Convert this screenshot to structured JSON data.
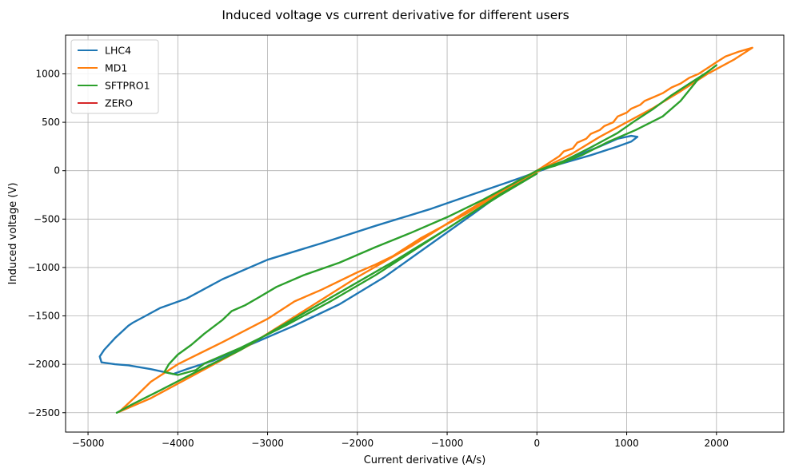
{
  "chart_data": {
    "type": "line",
    "title": "Induced voltage vs current derivative for different users",
    "xlabel": "Current derivative (A/s)",
    "ylabel": "Induced voltage (V)",
    "xlim": [
      -5250,
      2750
    ],
    "ylim": [
      -2700,
      1400
    ],
    "xticks": [
      -5000,
      -4000,
      -3000,
      -2000,
      -1000,
      0,
      1000,
      2000
    ],
    "xtick_labels": [
      "−5000",
      "−4000",
      "−3000",
      "−2000",
      "−1000",
      "0",
      "1000",
      "2000"
    ],
    "yticks": [
      -2500,
      -2000,
      -1500,
      -1000,
      -500,
      0,
      500,
      1000
    ],
    "ytick_labels": [
      "−2500",
      "−2000",
      "−1500",
      "−1000",
      "−500",
      "0",
      "500",
      "1000"
    ],
    "grid": true,
    "legend_position": "top-left",
    "series": [
      {
        "name": "LHC4",
        "color": "#1f77b4",
        "points": [
          [
            0,
            0
          ],
          [
            300,
            80
          ],
          [
            600,
            160
          ],
          [
            900,
            250
          ],
          [
            1050,
            300
          ],
          [
            1120,
            350
          ],
          [
            1050,
            360
          ],
          [
            900,
            330
          ],
          [
            700,
            250
          ],
          [
            400,
            140
          ],
          [
            100,
            20
          ],
          [
            -200,
            -80
          ],
          [
            -700,
            -240
          ],
          [
            -1200,
            -400
          ],
          [
            -1800,
            -570
          ],
          [
            -2400,
            -750
          ],
          [
            -3000,
            -920
          ],
          [
            -3500,
            -1120
          ],
          [
            -3900,
            -1320
          ],
          [
            -4200,
            -1420
          ],
          [
            -4400,
            -1520
          ],
          [
            -4500,
            -1570
          ],
          [
            -4550,
            -1600
          ],
          [
            -4700,
            -1730
          ],
          [
            -4820,
            -1850
          ],
          [
            -4870,
            -1920
          ],
          [
            -4850,
            -1980
          ],
          [
            -4700,
            -2000
          ],
          [
            -4550,
            -2010
          ],
          [
            -4300,
            -2050
          ],
          [
            -4050,
            -2100
          ],
          [
            -3900,
            -2050
          ],
          [
            -3600,
            -1960
          ],
          [
            -3200,
            -1800
          ],
          [
            -2700,
            -1600
          ],
          [
            -2200,
            -1380
          ],
          [
            -1700,
            -1100
          ],
          [
            -1200,
            -770
          ],
          [
            -700,
            -440
          ],
          [
            -300,
            -170
          ],
          [
            0,
            0
          ]
        ]
      },
      {
        "name": "MD1",
        "color": "#ff7f0e",
        "points": [
          [
            0,
            0
          ],
          [
            150,
            90
          ],
          [
            250,
            150
          ],
          [
            300,
            200
          ],
          [
            400,
            230
          ],
          [
            450,
            290
          ],
          [
            550,
            330
          ],
          [
            600,
            380
          ],
          [
            700,
            420
          ],
          [
            750,
            460
          ],
          [
            850,
            500
          ],
          [
            900,
            560
          ],
          [
            1000,
            600
          ],
          [
            1050,
            640
          ],
          [
            1150,
            680
          ],
          [
            1200,
            720
          ],
          [
            1300,
            760
          ],
          [
            1400,
            800
          ],
          [
            1500,
            860
          ],
          [
            1600,
            900
          ],
          [
            1700,
            960
          ],
          [
            1800,
            1000
          ],
          [
            1900,
            1060
          ],
          [
            2000,
            1120
          ],
          [
            2100,
            1180
          ],
          [
            2250,
            1230
          ],
          [
            2400,
            1270
          ],
          [
            2200,
            1150
          ],
          [
            1900,
            1000
          ],
          [
            1600,
            820
          ],
          [
            1300,
            650
          ],
          [
            1000,
            500
          ],
          [
            700,
            350
          ],
          [
            400,
            180
          ],
          [
            100,
            40
          ],
          [
            -300,
            -170
          ],
          [
            -800,
            -450
          ],
          [
            -1300,
            -700
          ],
          [
            -1600,
            -880
          ],
          [
            -1800,
            -970
          ],
          [
            -2000,
            -1050
          ],
          [
            -2400,
            -1230
          ],
          [
            -2700,
            -1350
          ],
          [
            -3000,
            -1530
          ],
          [
            -3500,
            -1770
          ],
          [
            -4000,
            -2000
          ],
          [
            -4300,
            -2180
          ],
          [
            -4500,
            -2360
          ],
          [
            -4650,
            -2490
          ],
          [
            -4300,
            -2350
          ],
          [
            -3800,
            -2100
          ],
          [
            -3200,
            -1800
          ],
          [
            -2600,
            -1450
          ],
          [
            -2000,
            -1100
          ],
          [
            -1400,
            -780
          ],
          [
            -800,
            -430
          ],
          [
            -300,
            -150
          ],
          [
            0,
            0
          ]
        ]
      },
      {
        "name": "SFTPRO1",
        "color": "#2ca02c",
        "points": [
          [
            0,
            0
          ],
          [
            300,
            100
          ],
          [
            600,
            240
          ],
          [
            900,
            390
          ],
          [
            1100,
            520
          ],
          [
            1300,
            640
          ],
          [
            1500,
            780
          ],
          [
            1700,
            900
          ],
          [
            1900,
            1020
          ],
          [
            2000,
            1090
          ],
          [
            1800,
            950
          ],
          [
            1600,
            720
          ],
          [
            1400,
            560
          ],
          [
            1100,
            420
          ],
          [
            800,
            300
          ],
          [
            500,
            160
          ],
          [
            200,
            50
          ],
          [
            0,
            0
          ],
          [
            -200,
            -100
          ],
          [
            -600,
            -300
          ],
          [
            -1000,
            -480
          ],
          [
            -1400,
            -640
          ],
          [
            -1800,
            -790
          ],
          [
            -2200,
            -950
          ],
          [
            -2600,
            -1080
          ],
          [
            -2900,
            -1200
          ],
          [
            -3100,
            -1310
          ],
          [
            -3250,
            -1390
          ],
          [
            -3400,
            -1450
          ],
          [
            -3500,
            -1540
          ],
          [
            -3700,
            -1680
          ],
          [
            -3850,
            -1800
          ],
          [
            -4000,
            -1900
          ],
          [
            -4100,
            -2000
          ],
          [
            -4150,
            -2080
          ],
          [
            -4000,
            -2110
          ],
          [
            -3800,
            -2060
          ],
          [
            -3700,
            -1990
          ],
          [
            -3300,
            -1830
          ],
          [
            -2800,
            -1600
          ],
          [
            -2300,
            -1350
          ],
          [
            -1800,
            -1080
          ],
          [
            -1300,
            -780
          ],
          [
            -800,
            -480
          ],
          [
            -400,
            -250
          ],
          [
            0,
            -30
          ],
          [
            -400,
            -240
          ],
          [
            -1000,
            -600
          ],
          [
            -1600,
            -940
          ],
          [
            -2200,
            -1260
          ],
          [
            -2800,
            -1580
          ],
          [
            -3300,
            -1850
          ],
          [
            -3800,
            -2080
          ],
          [
            -4200,
            -2270
          ],
          [
            -4500,
            -2410
          ],
          [
            -4680,
            -2500
          ]
        ]
      },
      {
        "name": "ZERO",
        "color": "#d62728",
        "points": []
      }
    ]
  }
}
